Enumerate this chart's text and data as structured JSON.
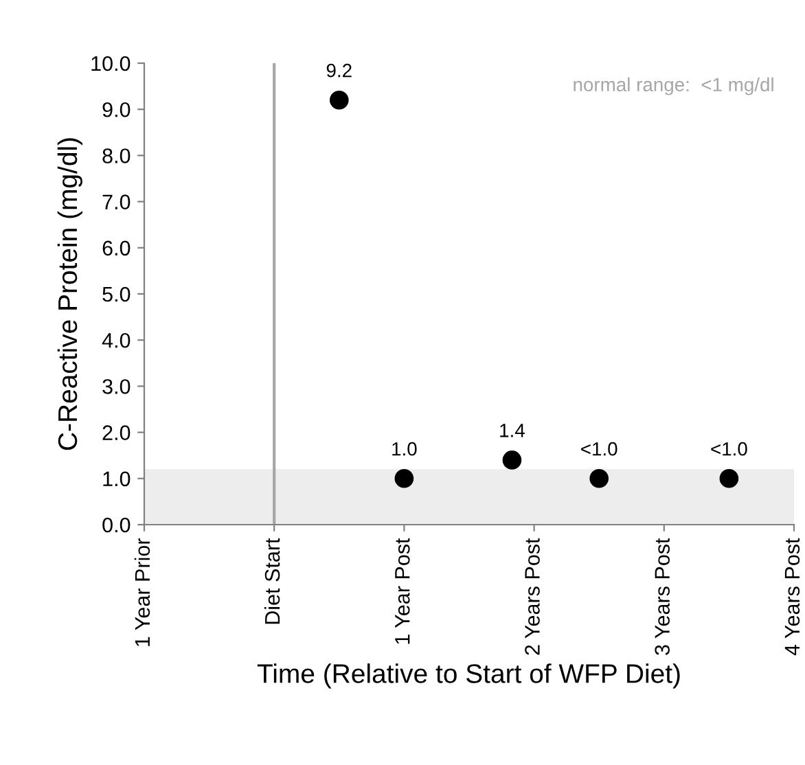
{
  "chart_data": {
    "type": "scatter",
    "xlabel": "Time (Relative to Start of WFP Diet)",
    "ylabel": "C-Reactive Protein (mg/dl)",
    "x": [
      0.5,
      1,
      1.83,
      2.5,
      3.5
    ],
    "values": [
      9.2,
      1.0,
      1.4,
      1.0,
      1.0
    ],
    "value_labels": [
      "9.2",
      "1.0",
      "1.4",
      "<1.0",
      "<1.0"
    ],
    "color": "#000000",
    "marker": "circle",
    "grid": false,
    "xlim": [
      -1,
      4
    ],
    "xticks": [
      {
        "value": -1,
        "label": "1 Year Prior"
      },
      {
        "value": 0,
        "label": "Diet Start"
      },
      {
        "value": 1,
        "label": "1 Year Post"
      },
      {
        "value": 2,
        "label": "2 Years Post"
      },
      {
        "value": 3,
        "label": "3 Years Post"
      },
      {
        "value": 4,
        "label": "4 Years Post"
      }
    ],
    "ylim": [
      0,
      10
    ],
    "yticks": [
      {
        "value": 0,
        "label": "0.0"
      },
      {
        "value": 1,
        "label": "1.0"
      },
      {
        "value": 2,
        "label": "2.0"
      },
      {
        "value": 3,
        "label": "3.0"
      },
      {
        "value": 4,
        "label": "4.0"
      },
      {
        "value": 5,
        "label": "5.0"
      },
      {
        "value": 6,
        "label": "6.0"
      },
      {
        "value": 7,
        "label": "7.0"
      },
      {
        "value": 8,
        "label": "8.0"
      },
      {
        "value": 9,
        "label": "9.0"
      },
      {
        "value": 10,
        "label": "10.0"
      }
    ],
    "ref_lines": [
      {
        "axis": "x",
        "value": 0,
        "color": "#a6a6a6"
      }
    ],
    "bands": [
      {
        "axis": "y",
        "from": 0,
        "to": 1.2,
        "color": "#ededed"
      }
    ],
    "annotations": [
      "normal range:  <1 mg/dl"
    ]
  }
}
